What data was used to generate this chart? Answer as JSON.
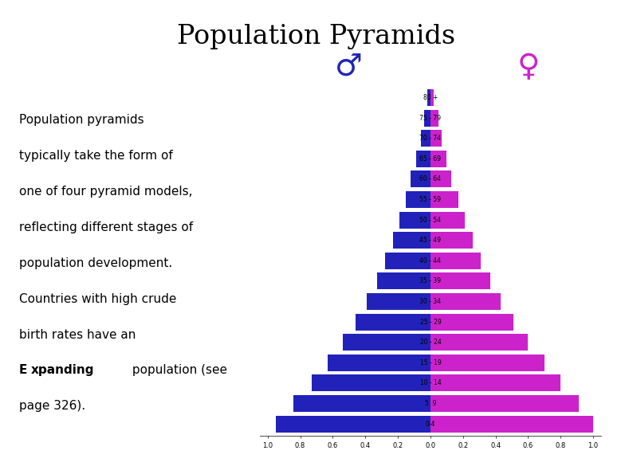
{
  "title": "Population Pyramids",
  "body_lines": [
    "Population pyramids",
    "typically take the form of",
    "one of four pyramid models,",
    "reflecting different stages of",
    "population development.",
    "Countries with high crude",
    "birth rates have an",
    [
      "E",
      "xpanding",
      " population (see"
    ],
    "page 326)."
  ],
  "age_groups": [
    "80 +",
    "75 - 79",
    "70 - 74",
    "65 - 69",
    "60 - 64",
    "55 - 59",
    "50 - 54",
    "45 - 49",
    "40 - 44",
    "35 - 39",
    "30 - 34",
    "25 - 29",
    "20 - 24",
    "15 - 19",
    "10 - 14",
    "5  9",
    "0 - 4"
  ],
  "age_labels": [
    "80 +",
    "75 - 79",
    "70 - 74",
    "65 - 69",
    "60 - 64",
    "55 - 59",
    "50 - 54",
    "45 - 49",
    "40 - 44",
    "35 - 39",
    "30 - 34",
    "25 - 29",
    "20 - 24",
    "15 - 19",
    "10 - 14",
    "5  9",
    "0-4"
  ],
  "male_values": [
    0.02,
    0.04,
    0.06,
    0.09,
    0.12,
    0.15,
    0.19,
    0.23,
    0.28,
    0.33,
    0.39,
    0.46,
    0.54,
    0.63,
    0.73,
    0.84,
    0.95
  ],
  "female_values": [
    0.02,
    0.05,
    0.07,
    0.1,
    0.13,
    0.17,
    0.21,
    0.26,
    0.31,
    0.37,
    0.43,
    0.51,
    0.6,
    0.7,
    0.8,
    0.91,
    1.0
  ],
  "male_color": "#2222bb",
  "female_color": "#cc22cc",
  "background_color": "#ffffff",
  "title_fontsize": 24,
  "body_fontsize": 11,
  "age_label_fontsize": 5.5,
  "xtick_fontsize": 6,
  "male_symbol": "♂",
  "female_symbol": "♀",
  "symbol_color_male": "#2222bb",
  "symbol_color_female": "#cc22cc",
  "symbol_fontsize": 28,
  "xlim": [
    -1.05,
    1.05
  ],
  "bar_height": 0.82,
  "xticks": [
    -1.0,
    -0.8,
    -0.6,
    -0.4,
    -0.2,
    0.0,
    0.2,
    0.4,
    0.6,
    0.8,
    1.0
  ],
  "xtick_labels": [
    "1.0",
    "0.8",
    "0.6",
    "0.4",
    "0.2",
    "0.0",
    "0.2",
    "0.4",
    "0.6",
    "0.8",
    "1.0"
  ]
}
